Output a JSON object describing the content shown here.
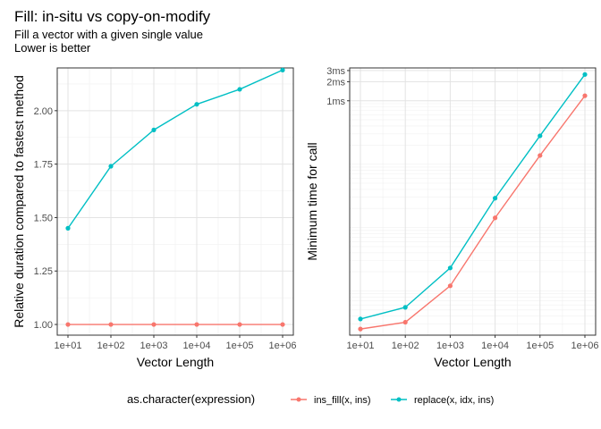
{
  "title": "Fill: in-situ vs copy-on-modify",
  "subtitle_lines": [
    "Fill a vector with a given single value",
    "Lower is better"
  ],
  "legend": {
    "title": "as.character(expression)",
    "items": [
      {
        "label": "ins_fill(x, ins)",
        "color": "#F8766D"
      },
      {
        "label": "replace(x, idx, ins)",
        "color": "#00BFC4"
      }
    ]
  },
  "chart_data": [
    {
      "type": "line",
      "xlabel": "Vector Length",
      "ylabel": "Relative duration compared to fastest method",
      "x": [
        "1e+01",
        "1e+02",
        "1e+03",
        "1e+04",
        "1e+05",
        "1e+06"
      ],
      "x_scale": "log10",
      "ylim": [
        0.95,
        2.2
      ],
      "y_ticks": [
        "1.00",
        "1.25",
        "1.50",
        "1.75",
        "2.00"
      ],
      "grid": true,
      "series": [
        {
          "name": "ins_fill(x, ins)",
          "color": "#F8766D",
          "values": [
            1.0,
            1.0,
            1.0,
            1.0,
            1.0,
            1.0
          ]
        },
        {
          "name": "replace(x, idx, ins)",
          "color": "#00BFC4",
          "values": [
            1.45,
            1.74,
            1.91,
            2.03,
            2.1,
            2.19
          ]
        }
      ]
    },
    {
      "type": "line",
      "xlabel": "Vector Length",
      "ylabel": "Minimum time for call",
      "x": [
        "1e+01",
        "1e+02",
        "1e+03",
        "1e+04",
        "1e+05",
        "1e+06"
      ],
      "x_scale": "log10",
      "y_scale": "log10",
      "y_unit": "ms",
      "ylim": [
        0.0002,
        3.3
      ],
      "y_ticks": [
        {
          "label": "1ms",
          "value": 1
        },
        {
          "label": "2ms",
          "value": 2
        },
        {
          "label": "3ms",
          "value": 3
        }
      ],
      "grid": true,
      "series": [
        {
          "name": "ins_fill(x, ins)",
          "color": "#F8766D",
          "values": [
            0.00025,
            0.00032,
            0.0012,
            0.0142,
            0.137,
            1.2
          ]
        },
        {
          "name": "replace(x, idx, ins)",
          "color": "#00BFC4",
          "values": [
            0.00036,
            0.00055,
            0.0023,
            0.029,
            0.28,
            2.6
          ]
        }
      ]
    }
  ]
}
